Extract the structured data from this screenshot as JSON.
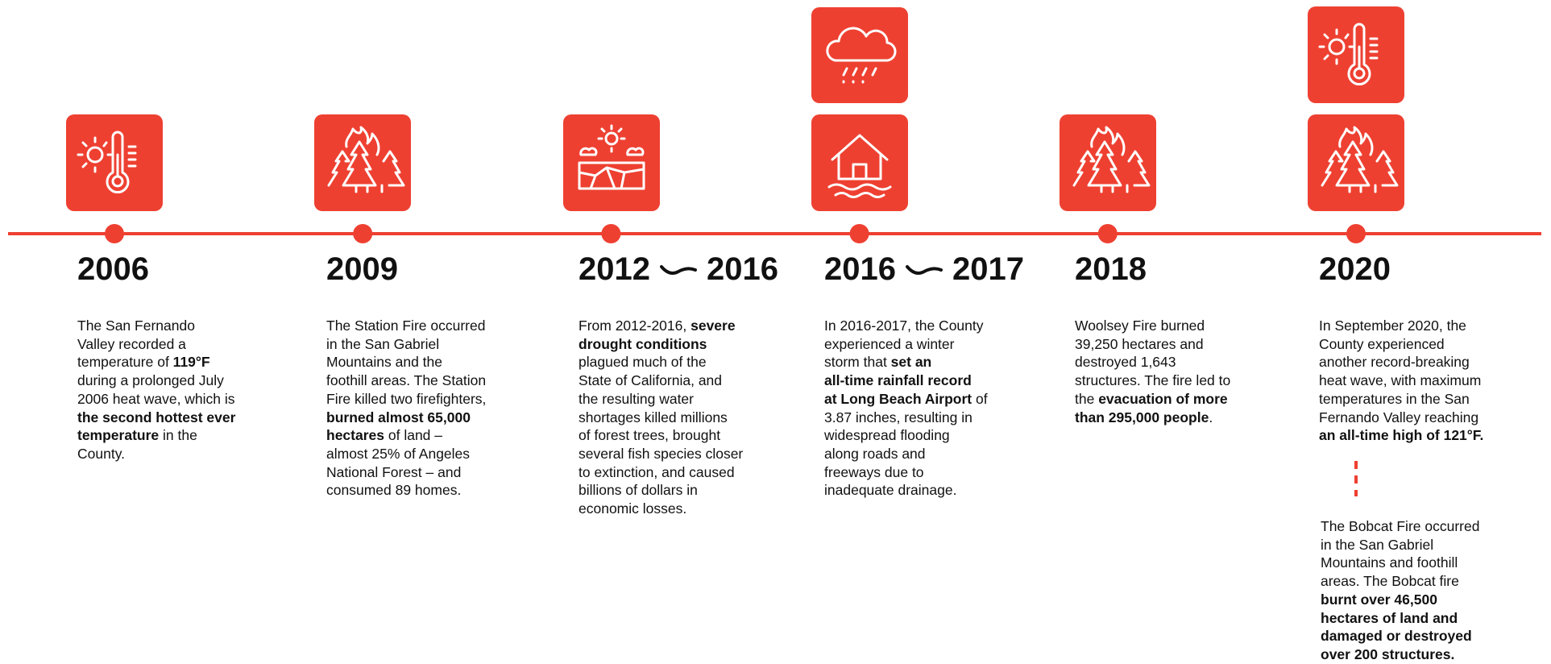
{
  "events": [
    {
      "years": [
        "2006"
      ],
      "lines": [
        [
          "The San Fernando"
        ],
        [
          "Valley recorded a"
        ],
        [
          "temperature of ",
          {
            "b": "119°F"
          }
        ],
        [
          "during a prolonged July"
        ],
        [
          "2006 heat wave, which is"
        ],
        [
          {
            "b": "the second hottest ever"
          }
        ],
        [
          {
            "b": "temperature"
          },
          " in the"
        ],
        [
          "County."
        ]
      ]
    },
    {
      "years": [
        "2009"
      ],
      "lines": [
        [
          "The Station Fire occurred"
        ],
        [
          "in the San Gabriel"
        ],
        [
          "Mountains and the"
        ],
        [
          "foothill areas. The Station"
        ],
        [
          "Fire killed two firefighters,"
        ],
        [
          {
            "b": "burned almost 65,000"
          }
        ],
        [
          {
            "b": "hectares"
          },
          " of land –"
        ],
        [
          "almost 25% of Angeles"
        ],
        [
          "National Forest – and"
        ],
        [
          "consumed 89 homes."
        ]
      ]
    },
    {
      "years": [
        "2012",
        "2016"
      ],
      "lines": [
        [
          "From 2012-2016, ",
          {
            "b": "severe"
          }
        ],
        [
          {
            "b": "drought conditions"
          }
        ],
        [
          "plagued much of the"
        ],
        [
          "State of California, and"
        ],
        [
          "the resulting water"
        ],
        [
          "shortages killed millions"
        ],
        [
          "of forest trees, brought"
        ],
        [
          "several fish species closer"
        ],
        [
          "to extinction, and caused"
        ],
        [
          "billions of dollars in"
        ],
        [
          "economic losses."
        ]
      ]
    },
    {
      "years": [
        "2016",
        "2017"
      ],
      "lines": [
        [
          "In 2016-2017, the County"
        ],
        [
          "experienced a winter"
        ],
        [
          "storm that ",
          {
            "b": "set an"
          }
        ],
        [
          {
            "b": "all-time rainfall record"
          }
        ],
        [
          {
            "b": "at Long Beach Airport"
          },
          " of"
        ],
        [
          "3.87 inches, resulting in"
        ],
        [
          "widespread flooding"
        ],
        [
          "along roads and"
        ],
        [
          "freeways due to"
        ],
        [
          "inadequate drainage."
        ]
      ]
    },
    {
      "years": [
        "2018"
      ],
      "lines": [
        [
          "Woolsey Fire burned"
        ],
        [
          "39,250 hectares and"
        ],
        [
          "destroyed 1,643"
        ],
        [
          "structures. The fire led to"
        ],
        [
          "the ",
          {
            "b": "evacuation of more"
          }
        ],
        [
          {
            "b": "than 295,000 people"
          },
          "."
        ]
      ]
    },
    {
      "years": [
        "2020"
      ],
      "lines": [
        [
          "In September 2020, the"
        ],
        [
          "County experienced"
        ],
        [
          "another record-breaking"
        ],
        [
          "heat wave, with maximum"
        ],
        [
          "temperatures in the San"
        ],
        [
          "Fernando Valley reaching"
        ],
        [
          {
            "b": "an all-time high of 121°F."
          }
        ]
      ]
    }
  ],
  "note": {
    "lines": [
      [
        "The Bobcat Fire occurred"
      ],
      [
        "in the San Gabriel"
      ],
      [
        "Mountains and foothill"
      ],
      [
        "areas. The Bobcat fire"
      ],
      [
        {
          "b": "burnt over 46,500"
        }
      ],
      [
        {
          "b": "hectares of land and"
        }
      ],
      [
        {
          "b": "damaged or destroyed"
        }
      ],
      [
        {
          "b": "over 200 structures."
        }
      ]
    ]
  }
}
